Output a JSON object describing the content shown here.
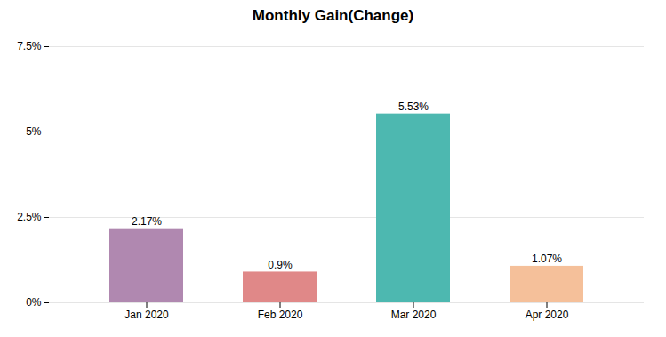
{
  "chart_data": {
    "type": "bar",
    "title": "Monthly Gain(Change)",
    "categories": [
      "Jan 2020",
      "Feb 2020",
      "Mar 2020",
      "Apr 2020"
    ],
    "values": [
      2.17,
      0.9,
      5.53,
      1.07
    ],
    "value_labels": [
      "2.17%",
      "0.9%",
      "5.53%",
      "1.07%"
    ],
    "data_labels": true,
    "colors": [
      "#b088b0",
      "#e08888",
      "#4db8b0",
      "#f5c09a"
    ],
    "ylim": [
      0,
      7.5
    ],
    "yticks": [
      {
        "value": 0,
        "label": "0%"
      },
      {
        "value": 2.5,
        "label": "2.5%"
      },
      {
        "value": 5.0,
        "label": "5%"
      },
      {
        "value": 7.5,
        "label": "7.5%"
      }
    ],
    "grid": true
  }
}
